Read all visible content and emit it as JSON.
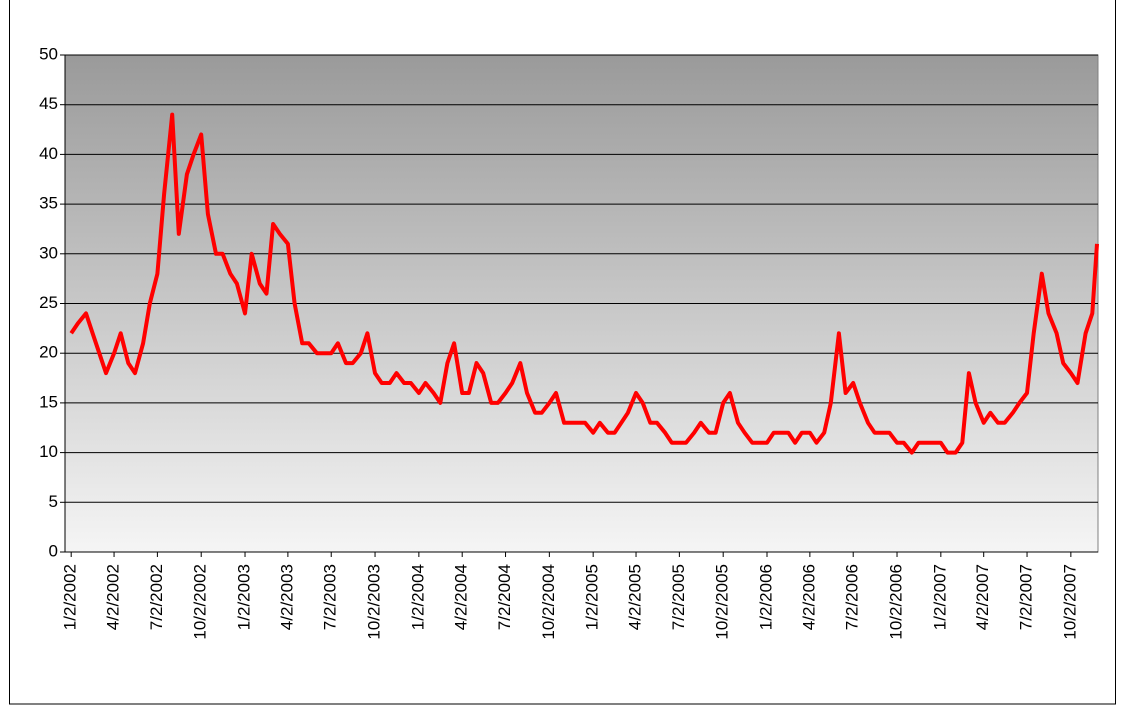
{
  "chart_data": {
    "type": "line",
    "x": [
      "2002-01-02",
      "2002-01-16",
      "2002-02-02",
      "2002-02-16",
      "2002-03-02",
      "2002-03-16",
      "2002-04-02",
      "2002-04-16",
      "2002-05-02",
      "2002-05-16",
      "2002-06-02",
      "2002-06-16",
      "2002-07-02",
      "2002-07-16",
      "2002-08-02",
      "2002-08-16",
      "2002-09-02",
      "2002-09-16",
      "2002-10-02",
      "2002-10-16",
      "2002-11-02",
      "2002-11-16",
      "2002-12-02",
      "2002-12-16",
      "2003-01-02",
      "2003-01-16",
      "2003-02-02",
      "2003-02-16",
      "2003-03-02",
      "2003-03-16",
      "2003-04-02",
      "2003-04-16",
      "2003-05-02",
      "2003-05-16",
      "2003-06-02",
      "2003-06-16",
      "2003-07-02",
      "2003-07-16",
      "2003-08-02",
      "2003-08-16",
      "2003-09-02",
      "2003-09-16",
      "2003-10-02",
      "2003-10-16",
      "2003-11-02",
      "2003-11-16",
      "2003-12-02",
      "2003-12-16",
      "2004-01-02",
      "2004-01-16",
      "2004-02-02",
      "2004-02-16",
      "2004-03-02",
      "2004-03-16",
      "2004-04-02",
      "2004-04-16",
      "2004-05-02",
      "2004-05-16",
      "2004-06-02",
      "2004-06-16",
      "2004-07-02",
      "2004-07-16",
      "2004-08-02",
      "2004-08-16",
      "2004-09-02",
      "2004-09-16",
      "2004-10-02",
      "2004-10-16",
      "2004-11-02",
      "2004-11-16",
      "2004-12-02",
      "2004-12-16",
      "2005-01-02",
      "2005-01-16",
      "2005-02-02",
      "2005-02-16",
      "2005-03-02",
      "2005-03-16",
      "2005-04-02",
      "2005-04-16",
      "2005-05-02",
      "2005-05-16",
      "2005-06-02",
      "2005-06-16",
      "2005-07-02",
      "2005-07-16",
      "2005-08-02",
      "2005-08-16",
      "2005-09-02",
      "2005-09-16",
      "2005-10-02",
      "2005-10-16",
      "2005-11-02",
      "2005-11-16",
      "2005-12-02",
      "2005-12-16",
      "2006-01-02",
      "2006-01-16",
      "2006-02-02",
      "2006-02-16",
      "2006-03-02",
      "2006-03-16",
      "2006-04-02",
      "2006-04-16",
      "2006-05-02",
      "2006-05-16",
      "2006-06-02",
      "2006-06-16",
      "2006-07-02",
      "2006-07-16",
      "2006-08-02",
      "2006-08-16",
      "2006-09-02",
      "2006-09-16",
      "2006-10-02",
      "2006-10-16",
      "2006-11-02",
      "2006-11-16",
      "2006-12-02",
      "2006-12-16",
      "2007-01-02",
      "2007-01-16",
      "2007-02-02",
      "2007-02-16",
      "2007-03-02",
      "2007-03-16",
      "2007-04-02",
      "2007-04-16",
      "2007-05-02",
      "2007-05-16",
      "2007-06-02",
      "2007-06-16",
      "2007-07-02",
      "2007-07-16",
      "2007-08-02",
      "2007-08-16",
      "2007-09-02",
      "2007-09-16",
      "2007-10-02",
      "2007-10-16",
      "2007-11-02",
      "2007-11-16",
      "2007-11-26"
    ],
    "series": [
      {
        "color": "#ff0000",
        "values": [
          22,
          23,
          24,
          22,
          20,
          18,
          20,
          22,
          19,
          18,
          21,
          25,
          28,
          36,
          44,
          32,
          38,
          40,
          42,
          34,
          30,
          30,
          28,
          27,
          24,
          30,
          27,
          26,
          33,
          32,
          31,
          25,
          21,
          21,
          20,
          20,
          20,
          21,
          19,
          19,
          20,
          22,
          18,
          17,
          17,
          18,
          17,
          17,
          16,
          17,
          16,
          15,
          19,
          21,
          16,
          16,
          19,
          18,
          15,
          15,
          16,
          17,
          19,
          16,
          14,
          14,
          15,
          16,
          13,
          13,
          13,
          13,
          12,
          13,
          12,
          12,
          13,
          14,
          16,
          15,
          13,
          13,
          12,
          11,
          11,
          11,
          12,
          13,
          12,
          12,
          15,
          16,
          13,
          12,
          11,
          11,
          11,
          12,
          12,
          12,
          11,
          12,
          12,
          11,
          12,
          15,
          22,
          16,
          17,
          15,
          13,
          12,
          12,
          12,
          11,
          11,
          10,
          11,
          11,
          11,
          11,
          10,
          10,
          11,
          18,
          15,
          13,
          14,
          13,
          13,
          14,
          15,
          16,
          22,
          28,
          24,
          22,
          19,
          18,
          17,
          22,
          24,
          31
        ]
      }
    ],
    "xlim": [
      "2001-12-20",
      "2007-11-28"
    ],
    "xticks": [
      {
        "value": "2002-01-02",
        "label": "1/2/2002"
      },
      {
        "value": "2002-04-02",
        "label": "4/2/2002"
      },
      {
        "value": "2002-07-02",
        "label": "7/2/2002"
      },
      {
        "value": "2002-10-02",
        "label": "10/2/2002"
      },
      {
        "value": "2003-01-02",
        "label": "1/2/2003"
      },
      {
        "value": "2003-04-02",
        "label": "4/2/2003"
      },
      {
        "value": "2003-07-02",
        "label": "7/2/2003"
      },
      {
        "value": "2003-10-02",
        "label": "10/2/2003"
      },
      {
        "value": "2004-01-02",
        "label": "1/2/2004"
      },
      {
        "value": "2004-04-02",
        "label": "4/2/2004"
      },
      {
        "value": "2004-07-02",
        "label": "7/2/2004"
      },
      {
        "value": "2004-10-02",
        "label": "10/2/2004"
      },
      {
        "value": "2005-01-02",
        "label": "1/2/2005"
      },
      {
        "value": "2005-04-02",
        "label": "4/2/2005"
      },
      {
        "value": "2005-07-02",
        "label": "7/2/2005"
      },
      {
        "value": "2005-10-02",
        "label": "10/2/2005"
      },
      {
        "value": "2006-01-02",
        "label": "1/2/2006"
      },
      {
        "value": "2006-04-02",
        "label": "4/2/2006"
      },
      {
        "value": "2006-07-02",
        "label": "7/2/2006"
      },
      {
        "value": "2006-10-02",
        "label": "10/2/2006"
      },
      {
        "value": "2007-01-02",
        "label": "1/2/2007"
      },
      {
        "value": "2007-04-02",
        "label": "4/2/2007"
      },
      {
        "value": "2007-07-02",
        "label": "7/2/2007"
      },
      {
        "value": "2007-10-02",
        "label": "10/2/2007"
      }
    ],
    "ylim": [
      0,
      50
    ],
    "yticks": [
      0,
      5,
      10,
      15,
      20,
      25,
      30,
      35,
      40,
      45,
      50
    ],
    "grid": true
  }
}
